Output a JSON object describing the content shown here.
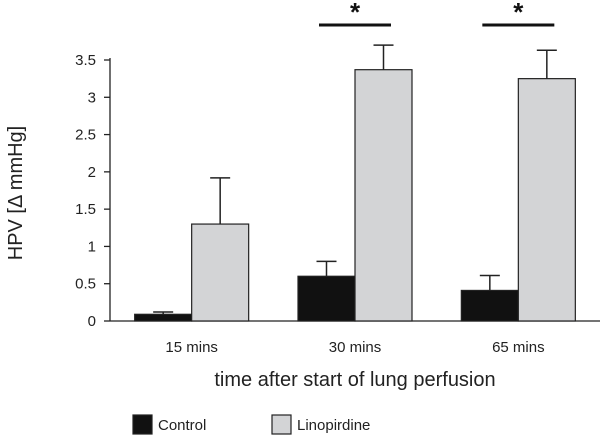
{
  "chart_data": {
    "type": "bar",
    "title": "",
    "xlabel": "time after start of lung perfusion",
    "ylabel": "HPV [Δ mmHg]",
    "ylim": [
      0,
      3.5
    ],
    "yticks": [
      "0",
      "0.5",
      "1",
      "1.5",
      "2",
      "2.5",
      "3",
      "3.5"
    ],
    "categories": [
      "15 mins",
      "30 mins",
      "65 mins"
    ],
    "series": [
      {
        "name": "Control",
        "values": [
          0.09,
          0.6,
          0.41
        ],
        "errors": [
          0.03,
          0.2,
          0.2
        ],
        "color": "#111111"
      },
      {
        "name": "Linopirdine",
        "values": [
          1.3,
          3.37,
          3.25
        ],
        "errors": [
          0.62,
          0.33,
          0.38
        ],
        "color": "#d3d4d6"
      }
    ],
    "significance": [
      {
        "category": "30 mins",
        "marker": "*"
      },
      {
        "category": "65 mins",
        "marker": "*"
      }
    ],
    "legend_position": "bottom",
    "grid": false
  }
}
